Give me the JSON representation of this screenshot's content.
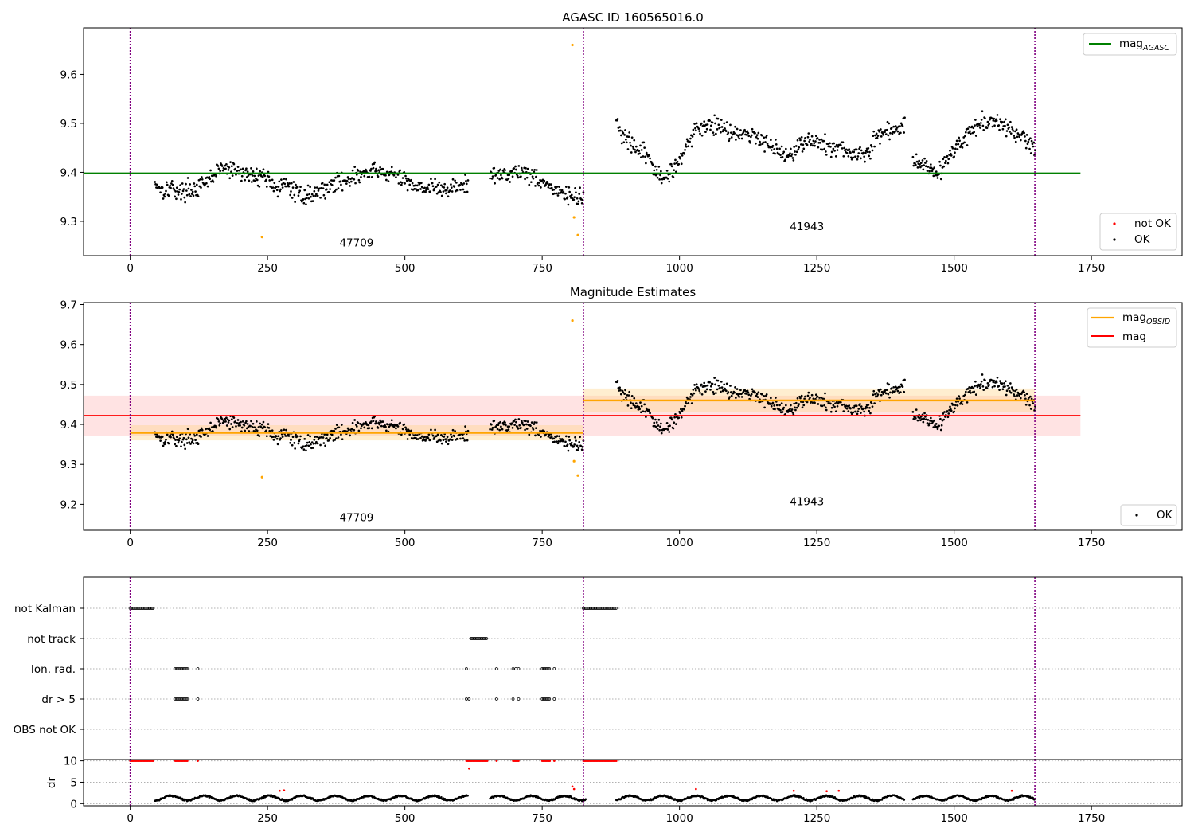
{
  "colors": {
    "ok": "#000000",
    "not_ok": "#ff0000",
    "outlier": "#ffa500",
    "mag_agasc": "#008000",
    "mag_obsid": "#ffa500",
    "mag": "#ff0000",
    "obs_boundary": "#800080",
    "mag_band": "#ffc0c0"
  },
  "chart_data": [
    {
      "type": "scatter",
      "title": "AGASC ID 160565016.0",
      "xlim": [
        -85,
        1915
      ],
      "ylim": [
        9.23,
        9.695
      ],
      "xticks": [
        0,
        250,
        500,
        750,
        1000,
        1250,
        1500,
        1750
      ],
      "xtick_labels": [
        "0",
        "250",
        "500",
        "750",
        "1000",
        "1250",
        "1500",
        "1750"
      ],
      "yticks": [
        9.3,
        9.4,
        9.5,
        9.6
      ],
      "ytick_labels": [
        "9.3",
        "9.4",
        "9.5",
        "9.6"
      ],
      "obs_boundaries": [
        0,
        825,
        1647
      ],
      "obsids": [
        {
          "label": "47709",
          "x": 412,
          "y": 9.249
        },
        {
          "label": "41943",
          "x": 1232,
          "y": 9.282
        }
      ],
      "mag_agasc": {
        "value": 9.398,
        "x_range": [
          -85,
          1730
        ]
      },
      "legend_lines": {
        "items": [
          {
            "name": "mag",
            "sub": "AGASC",
            "color": "#008000"
          }
        ],
        "loc": "upper right"
      },
      "legend_markers": {
        "items": [
          {
            "name": "not OK",
            "color": "#ff0000"
          },
          {
            "name": "OK",
            "color": "#000000"
          }
        ],
        "loc": "lower right"
      },
      "outliers": [
        [
          240,
          9.268
        ],
        [
          805,
          9.66
        ],
        [
          808,
          9.308
        ],
        [
          815,
          9.272
        ]
      ],
      "ok_segments": [
        [
          [
            45,
            9.38
          ],
          [
            60,
            9.363
          ],
          [
            75,
            9.37
          ],
          [
            90,
            9.358
          ],
          [
            105,
            9.366
          ],
          [
            120,
            9.365
          ],
          [
            135,
            9.375
          ],
          [
            150,
            9.392
          ],
          [
            165,
            9.41
          ],
          [
            180,
            9.405
          ],
          [
            195,
            9.402
          ],
          [
            210,
            9.396
          ],
          [
            225,
            9.39
          ],
          [
            240,
            9.395
          ],
          [
            255,
            9.382
          ],
          [
            270,
            9.365
          ],
          [
            285,
            9.375
          ],
          [
            300,
            9.36
          ],
          [
            315,
            9.352
          ],
          [
            330,
            9.355
          ],
          [
            345,
            9.362
          ],
          [
            360,
            9.37
          ],
          [
            375,
            9.378
          ],
          [
            390,
            9.385
          ],
          [
            405,
            9.39
          ],
          [
            420,
            9.395
          ],
          [
            435,
            9.4
          ],
          [
            450,
            9.402
          ],
          [
            465,
            9.398
          ],
          [
            480,
            9.395
          ],
          [
            495,
            9.385
          ],
          [
            510,
            9.378
          ],
          [
            525,
            9.372
          ],
          [
            540,
            9.37
          ],
          [
            555,
            9.368
          ],
          [
            570,
            9.364
          ],
          [
            585,
            9.368
          ],
          [
            600,
            9.372
          ],
          [
            615,
            9.375
          ]
        ],
        [
          [
            655,
            9.392
          ],
          [
            670,
            9.395
          ],
          [
            685,
            9.398
          ],
          [
            700,
            9.402
          ],
          [
            715,
            9.4
          ],
          [
            730,
            9.395
          ],
          [
            745,
            9.385
          ],
          [
            760,
            9.375
          ],
          [
            775,
            9.36
          ],
          [
            790,
            9.355
          ],
          [
            805,
            9.35
          ],
          [
            815,
            9.345
          ],
          [
            825,
            9.352
          ]
        ],
        [
          [
            885,
            9.505
          ],
          [
            895,
            9.478
          ],
          [
            905,
            9.462
          ],
          [
            915,
            9.45
          ],
          [
            925,
            9.442
          ],
          [
            935,
            9.44
          ],
          [
            945,
            9.43
          ],
          [
            955,
            9.405
          ],
          [
            960,
            9.392
          ],
          [
            970,
            9.386
          ],
          [
            980,
            9.395
          ],
          [
            990,
            9.412
          ],
          [
            1000,
            9.43
          ],
          [
            1010,
            9.445
          ],
          [
            1020,
            9.47
          ],
          [
            1030,
            9.485
          ],
          [
            1040,
            9.492
          ],
          [
            1055,
            9.5
          ],
          [
            1070,
            9.495
          ],
          [
            1085,
            9.488
          ],
          [
            1100,
            9.482
          ],
          [
            1115,
            9.478
          ],
          [
            1130,
            9.475
          ],
          [
            1145,
            9.47
          ],
          [
            1160,
            9.462
          ],
          [
            1175,
            9.452
          ],
          [
            1185,
            9.438
          ],
          [
            1195,
            9.432
          ],
          [
            1205,
            9.442
          ],
          [
            1220,
            9.458
          ],
          [
            1235,
            9.465
          ],
          [
            1250,
            9.462
          ],
          [
            1265,
            9.455
          ],
          [
            1280,
            9.45
          ],
          [
            1295,
            9.448
          ],
          [
            1310,
            9.445
          ],
          [
            1320,
            9.435
          ],
          [
            1330,
            9.432
          ],
          [
            1345,
            9.44
          ],
          [
            1355,
            9.468
          ],
          [
            1370,
            9.48
          ],
          [
            1385,
            9.485
          ],
          [
            1400,
            9.49
          ],
          [
            1410,
            9.498
          ]
        ],
        [
          [
            1425,
            9.43
          ],
          [
            1440,
            9.418
          ],
          [
            1455,
            9.408
          ],
          [
            1470,
            9.4
          ],
          [
            1480,
            9.415
          ],
          [
            1490,
            9.43
          ],
          [
            1500,
            9.445
          ],
          [
            1512,
            9.46
          ],
          [
            1525,
            9.478
          ],
          [
            1540,
            9.495
          ],
          [
            1555,
            9.505
          ],
          [
            1570,
            9.502
          ],
          [
            1585,
            9.495
          ],
          [
            1600,
            9.488
          ],
          [
            1615,
            9.478
          ],
          [
            1630,
            9.468
          ],
          [
            1640,
            9.458
          ],
          [
            1648,
            9.45
          ]
        ]
      ]
    },
    {
      "type": "scatter",
      "title": "Magnitude Estimates",
      "xlim": [
        -85,
        1915
      ],
      "ylim": [
        9.135,
        9.705
      ],
      "xticks": [
        0,
        250,
        500,
        750,
        1000,
        1250,
        1500,
        1750
      ],
      "xtick_labels": [
        "0",
        "250",
        "500",
        "750",
        "1000",
        "1250",
        "1500",
        "1750"
      ],
      "yticks": [
        9.2,
        9.3,
        9.4,
        9.5,
        9.6,
        9.7
      ],
      "ytick_labels": [
        "9.2",
        "9.3",
        "9.4",
        "9.5",
        "9.6",
        "9.7"
      ],
      "obs_boundaries": [
        0,
        825,
        1647
      ],
      "obsids": [
        {
          "label": "47709",
          "x": 412,
          "y": 9.158
        },
        {
          "label": "41943",
          "x": 1232,
          "y": 9.198
        }
      ],
      "mag": {
        "value": 9.422,
        "band": [
          9.372,
          9.472
        ],
        "x_range": [
          -85,
          1730
        ]
      },
      "mag_obsid": [
        {
          "x_range": [
            0,
            825
          ],
          "value": 9.379,
          "band": [
            9.36,
            9.398
          ]
        },
        {
          "x_range": [
            825,
            1647
          ],
          "value": 9.46,
          "band": [
            9.43,
            9.49
          ]
        }
      ],
      "legend_lines": {
        "items": [
          {
            "name": "mag",
            "sub": "OBSID",
            "color": "#ffa500"
          },
          {
            "name": "mag",
            "sub": "",
            "color": "#ff0000"
          }
        ],
        "loc": "upper right"
      },
      "legend_markers": {
        "items": [
          {
            "name": "OK",
            "color": "#000000"
          }
        ],
        "loc": "lower right"
      },
      "outliers": [
        [
          240,
          9.268
        ],
        [
          805,
          9.66
        ],
        [
          808,
          9.308
        ],
        [
          815,
          9.272
        ]
      ]
    },
    {
      "type": "event-raster",
      "xlim": [
        -85,
        1915
      ],
      "xticks": [
        0,
        250,
        500,
        750,
        1000,
        1250,
        1500,
        1750
      ],
      "xtick_labels": [
        "0",
        "250",
        "500",
        "750",
        "1000",
        "1250",
        "1500",
        "1750"
      ],
      "obs_boundaries": [
        0,
        825,
        1647
      ],
      "rows": [
        {
          "label": "not Kalman",
          "ranges": [
            [
              0,
              42
            ],
            [
              825,
              885
            ]
          ],
          "points": []
        },
        {
          "label": "not track",
          "ranges": [
            [
              620,
              650
            ]
          ],
          "points": []
        },
        {
          "label": "Ion. rad.",
          "ranges": [
            [
              82,
              105
            ],
            [
              750,
              765
            ]
          ],
          "points": [
            [
              123
            ],
            [
              612
            ],
            [
              667
            ],
            [
              697
            ],
            [
              702
            ],
            [
              707
            ],
            [
              772
            ]
          ]
        },
        {
          "label": "dr > 5",
          "ranges": [
            [
              82,
              105
            ],
            [
              750,
              765
            ]
          ],
          "points": [
            [
              123
            ],
            [
              612
            ],
            [
              617
            ],
            [
              667
            ],
            [
              697
            ],
            [
              707
            ],
            [
              772
            ]
          ]
        },
        {
          "label": "OBS not OK",
          "ranges": [],
          "points": []
        }
      ]
    },
    {
      "type": "scatter",
      "ylabel": "dr",
      "xlim": [
        -85,
        1915
      ],
      "ylim": [
        -0.5,
        10.3
      ],
      "yticks": [
        0,
        5,
        10
      ],
      "ytick_labels": [
        "0",
        "5",
        "10"
      ],
      "xticks": [
        0,
        250,
        500,
        750,
        1000,
        1250,
        1500,
        1750
      ],
      "xtick_labels": [
        "0",
        "250",
        "500",
        "750",
        "1000",
        "1250",
        "1500",
        "1750"
      ],
      "obs_boundaries": [
        0,
        825,
        1647
      ],
      "clipped_red": [
        [
          0,
          42
        ],
        [
          82,
          105
        ],
        [
          123,
          123
        ],
        [
          612,
          650
        ],
        [
          667,
          667
        ],
        [
          697,
          707
        ],
        [
          750,
          765
        ],
        [
          772,
          772
        ],
        [
          825,
          885
        ]
      ],
      "red_points": [
        [
          617,
          8.2
        ],
        [
          805,
          4.0
        ],
        [
          808,
          3.4
        ],
        [
          272,
          3.0
        ],
        [
          280,
          3.1
        ],
        [
          1030,
          3.4
        ],
        [
          1208,
          3.0
        ],
        [
          1268,
          2.9
        ],
        [
          1290,
          3.0
        ],
        [
          1605,
          3.0
        ]
      ],
      "ok_segments": [
        [
          45,
          615
        ],
        [
          655,
          830
        ],
        [
          885,
          1410
        ],
        [
          1425,
          1648
        ]
      ]
    }
  ]
}
